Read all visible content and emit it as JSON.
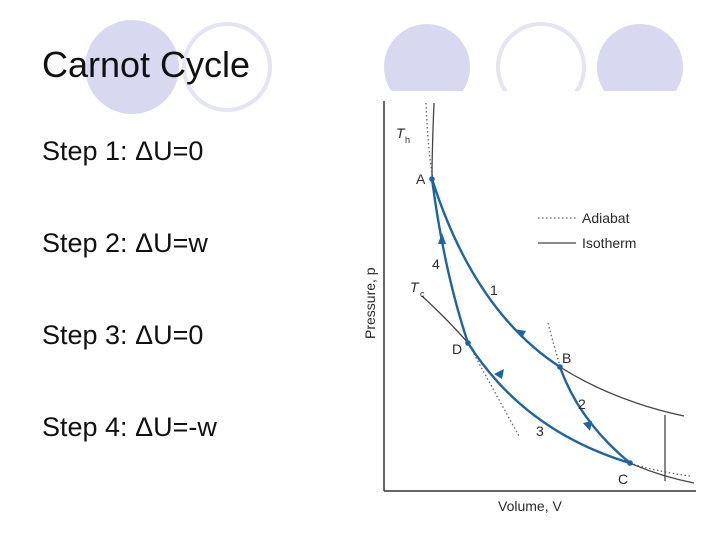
{
  "slide": {
    "title": "Carnot Cycle",
    "bullets": [
      "Step 1: ΔU=0",
      "Step 2: ΔU=w",
      "Step 3: ΔU=0",
      "Step 4: ΔU=-w"
    ]
  },
  "figure": {
    "axis_x": "Volume, V",
    "axis_y": "Pressure, p",
    "iso_hot": "T",
    "iso_hot_sub": "h",
    "iso_cold": "T",
    "iso_cold_sub": "c",
    "points": [
      "A",
      "B",
      "C",
      "D"
    ],
    "steps": [
      "1",
      "2",
      "3",
      "4"
    ],
    "legend": {
      "adiabat": "Adiabat",
      "isotherm": "Isotherm"
    }
  },
  "colors": {
    "circle_fill": "#d8d8f0",
    "circle_stroke": "#e4e4f2",
    "cycle": "#1c64a8",
    "curve": "#444444",
    "axes": "#333333"
  }
}
